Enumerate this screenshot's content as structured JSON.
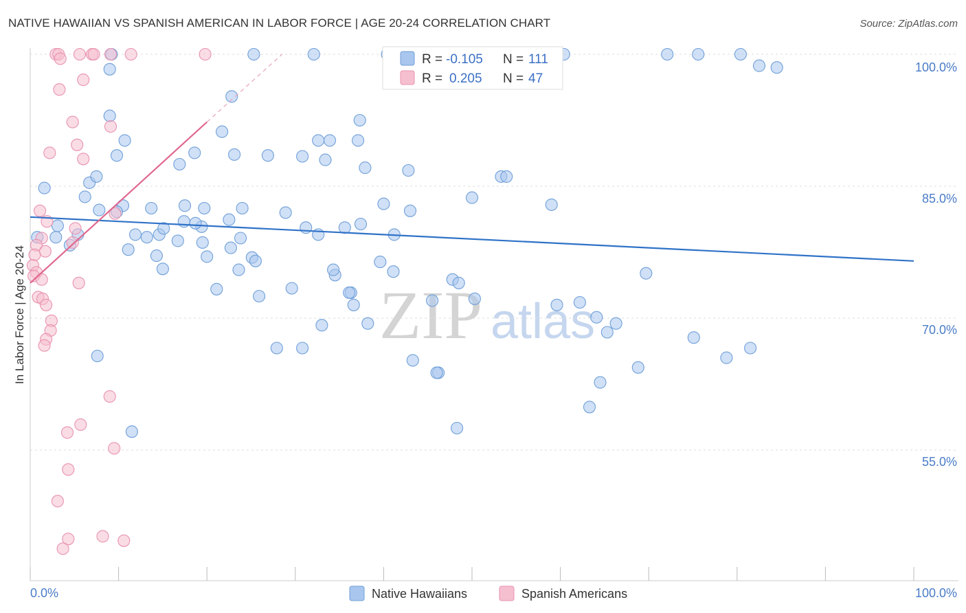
{
  "chart_data": {
    "type": "scatter",
    "title": "NATIVE HAWAIIAN VS SPANISH AMERICAN IN LABOR FORCE | AGE 20-24 CORRELATION CHART",
    "source": "Source: ZipAtlas.com",
    "ylabel": "In Labor Force | Age 20-24",
    "xlabel": "",
    "xlim": [
      0,
      100
    ],
    "ylim": [
      38,
      101
    ],
    "x_tick_labels": [
      "0.0%",
      "100.0%"
    ],
    "y_ticks": [
      {
        "value": 100,
        "label": "100.0%"
      },
      {
        "value": 85,
        "label": "85.0%"
      },
      {
        "value": 70,
        "label": "70.0%"
      },
      {
        "value": 55,
        "label": "55.0%"
      }
    ],
    "watermark": {
      "zip": "ZIP",
      "atlas": "atlas"
    },
    "legend": {
      "r_label": "R =",
      "n_label": "N =",
      "entries": [
        {
          "r": "-0.105",
          "n": "111"
        },
        {
          "r": "0.205",
          "n": "47"
        }
      ]
    },
    "colors": {
      "blue_fill": "#a9c6ee",
      "blue_stroke": "#6f9fd8",
      "blue_line": "#2f72c8",
      "pink_fill": "#f6bfd0",
      "pink_stroke": "#e892b0",
      "pink_line": "#e0688f"
    },
    "series": [
      {
        "name": "Native Hawaiians",
        "trend": {
          "x0": 0,
          "y0": 81.5,
          "x1": 100,
          "y1": 76.5
        },
        "points": [
          [
            9.2,
            100
          ],
          [
            25.3,
            100
          ],
          [
            32.1,
            100
          ],
          [
            40.4,
            100
          ],
          [
            60.4,
            100
          ],
          [
            72.1,
            100
          ],
          [
            75.6,
            100
          ],
          [
            80.4,
            100
          ],
          [
            9.0,
            98.3
          ],
          [
            82.5,
            98.7
          ],
          [
            84.5,
            98.5
          ],
          [
            22.8,
            95.2
          ],
          [
            9.0,
            93.0
          ],
          [
            37.3,
            92.5
          ],
          [
            21.7,
            91.2
          ],
          [
            10.7,
            90.2
          ],
          [
            32.6,
            90.2
          ],
          [
            33.9,
            90.2
          ],
          [
            37.1,
            90.2
          ],
          [
            9.8,
            88.5
          ],
          [
            18.6,
            88.8
          ],
          [
            23.1,
            88.6
          ],
          [
            26.9,
            88.5
          ],
          [
            30.8,
            88.4
          ],
          [
            33.4,
            88.0
          ],
          [
            16.9,
            87.5
          ],
          [
            37.9,
            87.1
          ],
          [
            42.8,
            86.8
          ],
          [
            53.3,
            86.1
          ],
          [
            53.9,
            86.1
          ],
          [
            1.6,
            84.8
          ],
          [
            6.7,
            85.4
          ],
          [
            7.5,
            86.1
          ],
          [
            6.2,
            83.8
          ],
          [
            10.5,
            82.8
          ],
          [
            9.8,
            82.1
          ],
          [
            7.8,
            82.3
          ],
          [
            17.5,
            82.8
          ],
          [
            24.0,
            82.5
          ],
          [
            28.9,
            82.0
          ],
          [
            40.0,
            83.0
          ],
          [
            43.0,
            82.2
          ],
          [
            50.0,
            83.7
          ],
          [
            59.0,
            82.9
          ],
          [
            13.7,
            82.5
          ],
          [
            19.7,
            82.5
          ],
          [
            17.4,
            81.0
          ],
          [
            19.4,
            80.4
          ],
          [
            18.7,
            80.8
          ],
          [
            35.6,
            80.3
          ],
          [
            37.4,
            80.7
          ],
          [
            22.5,
            81.2
          ],
          [
            31.2,
            80.3
          ],
          [
            32.6,
            79.5
          ],
          [
            13.2,
            79.2
          ],
          [
            14.6,
            79.5
          ],
          [
            15.1,
            80.2
          ],
          [
            3.1,
            80.5
          ],
          [
            11.9,
            79.5
          ],
          [
            16.7,
            78.8
          ],
          [
            2.9,
            79.2
          ],
          [
            41.2,
            79.5
          ],
          [
            22.7,
            78.0
          ],
          [
            11.1,
            77.8
          ],
          [
            14.3,
            77.1
          ],
          [
            34.5,
            74.9
          ],
          [
            23.8,
            79.1
          ],
          [
            19.5,
            78.6
          ],
          [
            4.5,
            78.3
          ],
          [
            5.4,
            79.5
          ],
          [
            0.8,
            79.2
          ],
          [
            25.1,
            76.9
          ],
          [
            20.0,
            77.0
          ],
          [
            34.3,
            75.5
          ],
          [
            39.6,
            76.4
          ],
          [
            23.6,
            75.5
          ],
          [
            25.5,
            76.5
          ],
          [
            41.1,
            75.3
          ],
          [
            15.0,
            75.6
          ],
          [
            29.6,
            73.4
          ],
          [
            47.8,
            74.4
          ],
          [
            36.3,
            72.9
          ],
          [
            25.9,
            72.5
          ],
          [
            21.1,
            73.3
          ],
          [
            36.1,
            72.9
          ],
          [
            45.5,
            72.0
          ],
          [
            48.5,
            74.0
          ],
          [
            50.3,
            72.2
          ],
          [
            38.2,
            69.4
          ],
          [
            69.7,
            75.1
          ],
          [
            33.0,
            69.2
          ],
          [
            36.6,
            71.5
          ],
          [
            7.6,
            65.7
          ],
          [
            27.9,
            66.6
          ],
          [
            30.8,
            66.6
          ],
          [
            43.3,
            65.2
          ],
          [
            62.2,
            71.8
          ],
          [
            64.1,
            70.1
          ],
          [
            66.3,
            69.4
          ],
          [
            68.8,
            64.4
          ],
          [
            65.3,
            68.4
          ],
          [
            59.6,
            71.5
          ],
          [
            75.1,
            67.8
          ],
          [
            78.8,
            65.5
          ],
          [
            81.5,
            66.6
          ],
          [
            64.5,
            62.7
          ],
          [
            46.2,
            63.8
          ],
          [
            63.3,
            59.9
          ],
          [
            11.5,
            57.1
          ],
          [
            46.0,
            63.8
          ],
          [
            48.3,
            57.5
          ]
        ]
      },
      {
        "name": "Spanish Americans",
        "trend": {
          "x0": 0,
          "y0": 74.0,
          "x1": 20,
          "y1": 92.3,
          "dashed_to": {
            "x": 28.5,
            "y": 100
          }
        },
        "points": [
          [
            2.9,
            100
          ],
          [
            3.2,
            100
          ],
          [
            5.6,
            100
          ],
          [
            7.0,
            100
          ],
          [
            7.2,
            100
          ],
          [
            9.1,
            100
          ],
          [
            11.4,
            100
          ],
          [
            19.8,
            100
          ],
          [
            3.4,
            99.5
          ],
          [
            6.0,
            97.1
          ],
          [
            3.3,
            96.0
          ],
          [
            4.8,
            92.3
          ],
          [
            9.1,
            91.8
          ],
          [
            5.3,
            89.7
          ],
          [
            2.2,
            88.8
          ],
          [
            6.0,
            88.1
          ],
          [
            1.1,
            82.2
          ],
          [
            1.9,
            81.0
          ],
          [
            9.6,
            81.9
          ],
          [
            5.1,
            80.2
          ],
          [
            1.3,
            79.1
          ],
          [
            4.8,
            78.6
          ],
          [
            0.7,
            78.3
          ],
          [
            1.7,
            77.6
          ],
          [
            0.5,
            77.2
          ],
          [
            0.3,
            76.0
          ],
          [
            0.7,
            75.2
          ],
          [
            0.4,
            74.8
          ],
          [
            1.3,
            74.4
          ],
          [
            5.5,
            74.0
          ],
          [
            0.9,
            72.4
          ],
          [
            1.4,
            72.2
          ],
          [
            1.8,
            71.5
          ],
          [
            2.4,
            69.7
          ],
          [
            2.3,
            68.6
          ],
          [
            1.8,
            67.6
          ],
          [
            1.6,
            66.9
          ],
          [
            9.0,
            61.1
          ],
          [
            5.7,
            57.9
          ],
          [
            4.2,
            57.0
          ],
          [
            9.5,
            55.2
          ],
          [
            4.3,
            52.8
          ],
          [
            3.1,
            49.2
          ],
          [
            8.2,
            45.2
          ],
          [
            4.3,
            44.9
          ],
          [
            3.7,
            43.8
          ],
          [
            10.6,
            44.7
          ]
        ]
      }
    ]
  },
  "bottom_legend": [
    "Native Hawaiians",
    "Spanish Americans"
  ]
}
